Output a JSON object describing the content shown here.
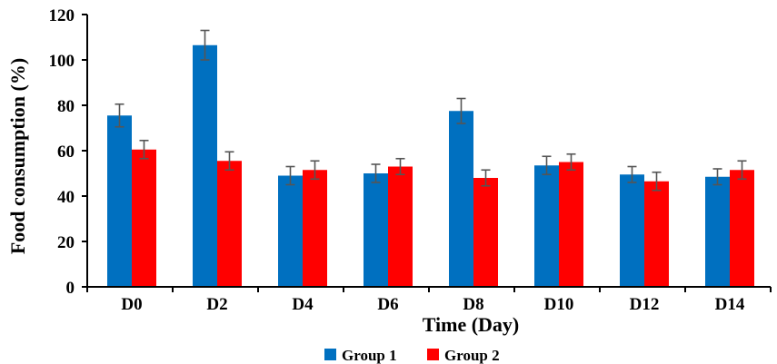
{
  "chart_data": {
    "type": "bar",
    "title": "",
    "xlabel": "Time (Day)",
    "ylabel": "Food consumption (%)",
    "categories": [
      "D0",
      "D2",
      "D4",
      "D6",
      "D8",
      "D10",
      "D12",
      "D14"
    ],
    "ylim": [
      0,
      120
    ],
    "yticks": [
      0,
      20,
      40,
      60,
      80,
      100,
      120
    ],
    "grid": false,
    "legend_position": "bottom",
    "series": [
      {
        "name": "Group 1",
        "color": "#0070c0",
        "values": [
          75.5,
          106.5,
          49,
          50,
          77.5,
          53.5,
          49.5,
          48.5
        ],
        "errors": [
          5,
          6.5,
          4,
          4,
          5.5,
          4,
          3.5,
          3.5
        ]
      },
      {
        "name": "Group 2",
        "color": "#ff0000",
        "values": [
          60.5,
          55.5,
          51.5,
          53,
          48,
          55,
          46.5,
          51.5
        ],
        "errors": [
          4,
          4,
          4,
          3.5,
          3.5,
          3.5,
          4,
          4
        ]
      }
    ]
  }
}
